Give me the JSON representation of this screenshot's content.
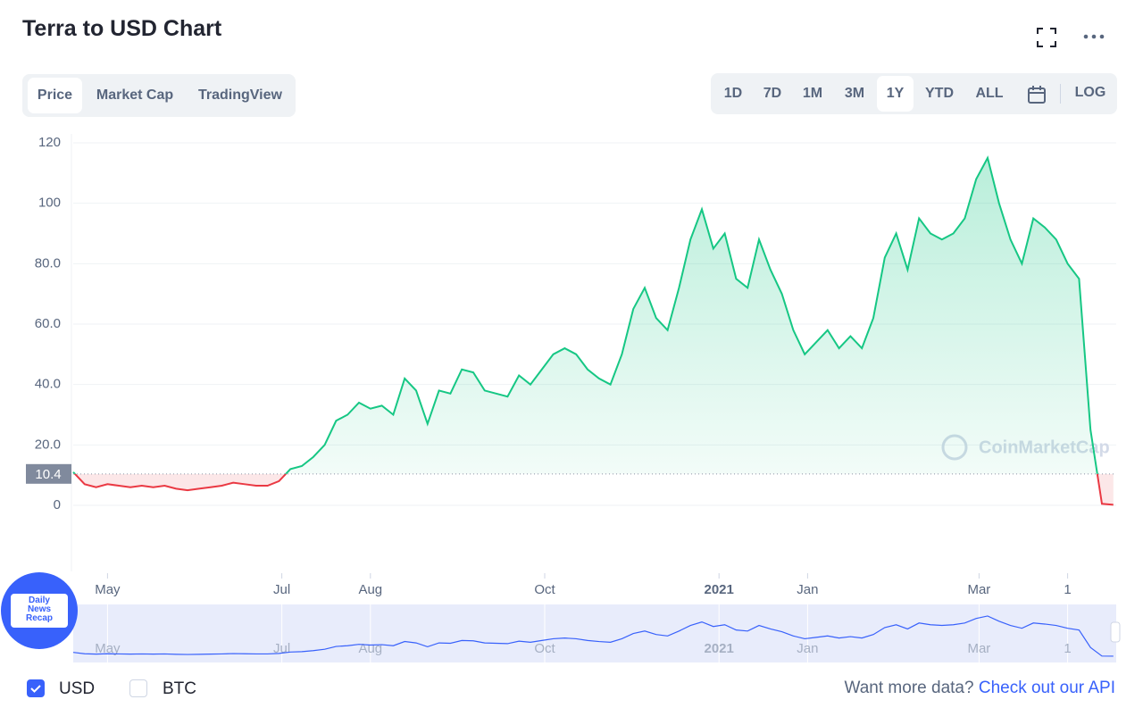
{
  "ui": {
    "tabs": [
      "Price",
      "Market Cap",
      "TradingView"
    ],
    "ranges": [
      "1D",
      "7D",
      "1M",
      "3M",
      "1Y",
      "YTD",
      "ALL"
    ],
    "log": "LOG",
    "watermark": "CoinMarketCap",
    "badge": [
      "Daily",
      "News",
      "Recap"
    ],
    "checkboxes": [
      "USD",
      "BTC"
    ],
    "footer_text": "Want more data?",
    "footer_link": "Check out our API"
  },
  "chart_data": {
    "type": "line",
    "title": "Terra to USD Chart",
    "x": [
      0,
      4,
      8,
      12,
      16,
      20,
      24,
      28,
      32,
      36,
      40,
      44,
      48,
      52,
      56,
      60,
      64,
      68,
      72,
      76,
      80,
      84,
      88,
      92,
      96,
      100,
      104,
      108,
      112,
      116,
      120,
      124,
      128,
      132,
      136,
      140,
      144,
      148,
      152,
      156,
      160,
      164,
      168,
      172,
      176,
      180,
      184,
      188,
      192,
      196,
      200,
      204,
      208,
      212,
      216,
      220,
      224,
      228,
      232,
      236,
      240,
      244,
      248,
      252,
      256,
      260,
      264,
      268,
      272,
      276,
      280,
      284,
      288,
      292,
      296,
      300,
      304,
      308,
      312,
      316,
      320,
      324,
      328,
      332,
      336,
      340,
      344,
      348,
      352,
      356,
      360,
      364
    ],
    "values": [
      11,
      7,
      6,
      7,
      6.5,
      6,
      6.5,
      6,
      6.5,
      5.5,
      5,
      5.5,
      6,
      6.5,
      7.5,
      7,
      6.5,
      6.5,
      8,
      12,
      13,
      16,
      20,
      28,
      30,
      34,
      32,
      33,
      30,
      42,
      38,
      27,
      38,
      37,
      45,
      44,
      38,
      37,
      36,
      43,
      40,
      45,
      50,
      52,
      50,
      45,
      42,
      40,
      50,
      65,
      72,
      62,
      58,
      72,
      88,
      98,
      85,
      90,
      75,
      72,
      88,
      78,
      70,
      58,
      50,
      54,
      58,
      52,
      56,
      52,
      62,
      82,
      90,
      78,
      95,
      90,
      88,
      90,
      95,
      108,
      115,
      100,
      88,
      80,
      95,
      92,
      88,
      80,
      75,
      25,
      0.5,
      0.2
    ],
    "color": "#16c784",
    "down_color": "#ea3943",
    "current_value": 10.4,
    "xlim": [
      0,
      365
    ],
    "xticks": [
      {
        "value": 12,
        "label": "May"
      },
      {
        "value": 73,
        "label": "Jul"
      },
      {
        "value": 104,
        "label": "Aug"
      },
      {
        "value": 165,
        "label": "Oct"
      },
      {
        "value": 226,
        "label": "2021"
      },
      {
        "value": 257,
        "label": "Jan"
      },
      {
        "value": 317,
        "label": "Mar"
      },
      {
        "value": 348,
        "label": "1"
      }
    ],
    "ylim": [
      0,
      120
    ],
    "yticks": [
      0,
      {
        "value": 20,
        "label": "20.0"
      },
      {
        "value": 40,
        "label": "40.0"
      },
      {
        "value": 60,
        "label": "60.0"
      },
      {
        "value": 80,
        "label": "80.0"
      },
      100,
      120
    ],
    "grid": true
  }
}
